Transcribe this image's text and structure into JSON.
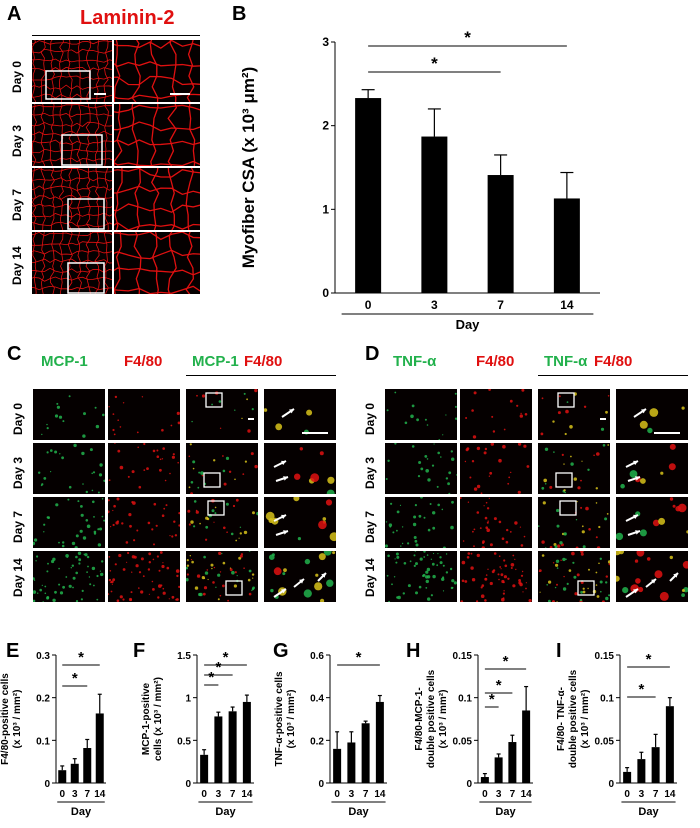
{
  "panels": {
    "A": {
      "letter": "A",
      "title": "Laminin-2",
      "rows": [
        "Day 0",
        "Day 3",
        "Day 7",
        "Day 14"
      ]
    },
    "B": {
      "letter": "B"
    },
    "C": {
      "letter": "C",
      "headers": [
        "MCP-1",
        "F4/80",
        "MCP-1",
        "F4/80"
      ],
      "rows": [
        "Day 0",
        "Day 3",
        "Day 7",
        "Day 14"
      ]
    },
    "D": {
      "letter": "D",
      "headers": [
        "TNF-α",
        "F4/80",
        "TNF-α",
        "F4/80"
      ],
      "rows": [
        "Day 0",
        "Day 3",
        "Day 7",
        "Day 14"
      ]
    }
  },
  "colors": {
    "laminin": "#e01010",
    "green_marker": "#22b14c",
    "red_marker": "#e01010",
    "bar": "#000000"
  },
  "chart_data": [
    {
      "panel": "B",
      "type": "bar",
      "categories": [
        "0",
        "3",
        "7",
        "14"
      ],
      "values": [
        2.33,
        1.87,
        1.41,
        1.13
      ],
      "errors": [
        0.1,
        0.33,
        0.24,
        0.31
      ],
      "ylabel": "Myofiber CSA (x 10³ μm²)",
      "xlabel": "Day",
      "ylim": [
        0,
        3
      ],
      "yticks": [
        "0",
        "1",
        "2",
        "3"
      ],
      "sig_marks": [
        "*",
        "*"
      ]
    },
    {
      "panel": "E",
      "type": "bar",
      "categories": [
        "0",
        "3",
        "7",
        "14"
      ],
      "values": [
        0.03,
        0.045,
        0.082,
        0.163
      ],
      "errors": [
        0.01,
        0.012,
        0.02,
        0.045
      ],
      "ylabel": "F4/80-positive cells (x 10³ / mm²)",
      "xlabel": "Day",
      "ylim": [
        0,
        0.3
      ],
      "yticks": [
        "0",
        "0.1",
        "0.2",
        "0.3"
      ],
      "sig_marks": [
        "*",
        "*"
      ]
    },
    {
      "panel": "F",
      "type": "bar",
      "categories": [
        "0",
        "3",
        "7",
        "14"
      ],
      "values": [
        0.33,
        0.78,
        0.84,
        0.95
      ],
      "errors": [
        0.06,
        0.05,
        0.05,
        0.08
      ],
      "ylabel": "MCP-1-positive cells (x 10³ / mm²)",
      "xlabel": "Day",
      "ylim": [
        0,
        1.5
      ],
      "yticks": [
        "0",
        "0.5",
        "1",
        "1.5"
      ],
      "sig_marks": [
        "*",
        "*",
        "*"
      ]
    },
    {
      "panel": "G",
      "type": "bar",
      "categories": [
        "0",
        "3",
        "7",
        "14"
      ],
      "values": [
        0.16,
        0.19,
        0.28,
        0.38
      ],
      "errors": [
        0.08,
        0.05,
        0.01,
        0.03
      ],
      "ylabel": "TNF-α-positive cells (x 10³ / mm²)",
      "xlabel": "Day",
      "ylim": [
        0,
        0.6
      ],
      "yticks": [
        "0",
        "0.2",
        "0.4",
        "0.6"
      ],
      "sig_marks": [
        "*"
      ]
    },
    {
      "panel": "H",
      "type": "bar",
      "categories": [
        "0",
        "3",
        "7",
        "14"
      ],
      "values": [
        0.007,
        0.03,
        0.048,
        0.085
      ],
      "errors": [
        0.004,
        0.004,
        0.008,
        0.028
      ],
      "ylabel": "F4/80-MCP-1- double positive cells (x 10³ / mm²)",
      "xlabel": "Day",
      "ylim": [
        0,
        0.15
      ],
      "yticks": [
        "0",
        "0.05",
        "0.1",
        "0.15"
      ],
      "sig_marks": [
        "*",
        "*",
        "*"
      ]
    },
    {
      "panel": "I",
      "type": "bar",
      "categories": [
        "0",
        "3",
        "7",
        "14"
      ],
      "values": [
        0.013,
        0.028,
        0.042,
        0.09
      ],
      "errors": [
        0.005,
        0.008,
        0.015,
        0.01
      ],
      "ylabel": "F4/80- TNF-α- double positive cells (x 10³ / mm²)",
      "xlabel": "Day",
      "ylim": [
        0,
        0.15
      ],
      "yticks": [
        "0",
        "0.05",
        "0.1",
        "0.15"
      ],
      "sig_marks": [
        "*",
        "*"
      ]
    }
  ]
}
